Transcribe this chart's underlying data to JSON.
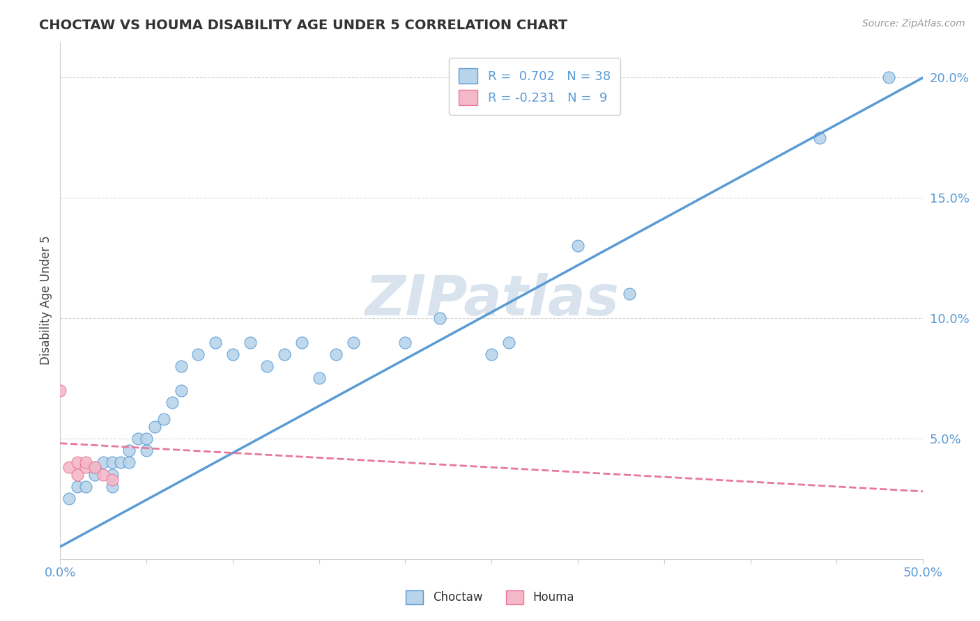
{
  "title": "CHOCTAW VS HOUMA DISABILITY AGE UNDER 5 CORRELATION CHART",
  "source": "Source: ZipAtlas.com",
  "ylabel": "Disability Age Under 5",
  "xlim": [
    0.0,
    0.5
  ],
  "ylim": [
    0.0,
    0.215
  ],
  "choctaw_r": 0.702,
  "choctaw_n": 38,
  "houma_r": -0.231,
  "houma_n": 9,
  "choctaw_color": "#b8d4ea",
  "houma_color": "#f5b8c8",
  "choctaw_line_color": "#5b9bd5",
  "houma_line_color": "#e8789a",
  "watermark_color": "#c8d8e8",
  "background_color": "#ffffff",
  "grid_color": "#d8d8d8",
  "choctaw_x": [
    0.005,
    0.01,
    0.015,
    0.02,
    0.02,
    0.025,
    0.03,
    0.03,
    0.03,
    0.035,
    0.04,
    0.04,
    0.045,
    0.05,
    0.05,
    0.055,
    0.06,
    0.065,
    0.07,
    0.07,
    0.08,
    0.09,
    0.1,
    0.11,
    0.12,
    0.13,
    0.14,
    0.15,
    0.16,
    0.17,
    0.2,
    0.22,
    0.25,
    0.26,
    0.3,
    0.33,
    0.44,
    0.48
  ],
  "choctaw_y": [
    0.025,
    0.03,
    0.03,
    0.035,
    0.038,
    0.04,
    0.03,
    0.035,
    0.04,
    0.04,
    0.04,
    0.045,
    0.05,
    0.045,
    0.05,
    0.055,
    0.058,
    0.065,
    0.07,
    0.08,
    0.085,
    0.09,
    0.085,
    0.09,
    0.08,
    0.085,
    0.09,
    0.075,
    0.085,
    0.09,
    0.09,
    0.1,
    0.085,
    0.09,
    0.13,
    0.11,
    0.175,
    0.2
  ],
  "houma_x": [
    0.0,
    0.005,
    0.01,
    0.01,
    0.015,
    0.015,
    0.02,
    0.025,
    0.03
  ],
  "houma_y": [
    0.07,
    0.038,
    0.035,
    0.04,
    0.038,
    0.04,
    0.038,
    0.035,
    0.033
  ],
  "choctaw_line_x": [
    0.0,
    0.5
  ],
  "choctaw_line_y": [
    0.005,
    0.2
  ],
  "houma_line_x": [
    0.0,
    0.5
  ],
  "houma_line_y": [
    0.048,
    0.028
  ]
}
